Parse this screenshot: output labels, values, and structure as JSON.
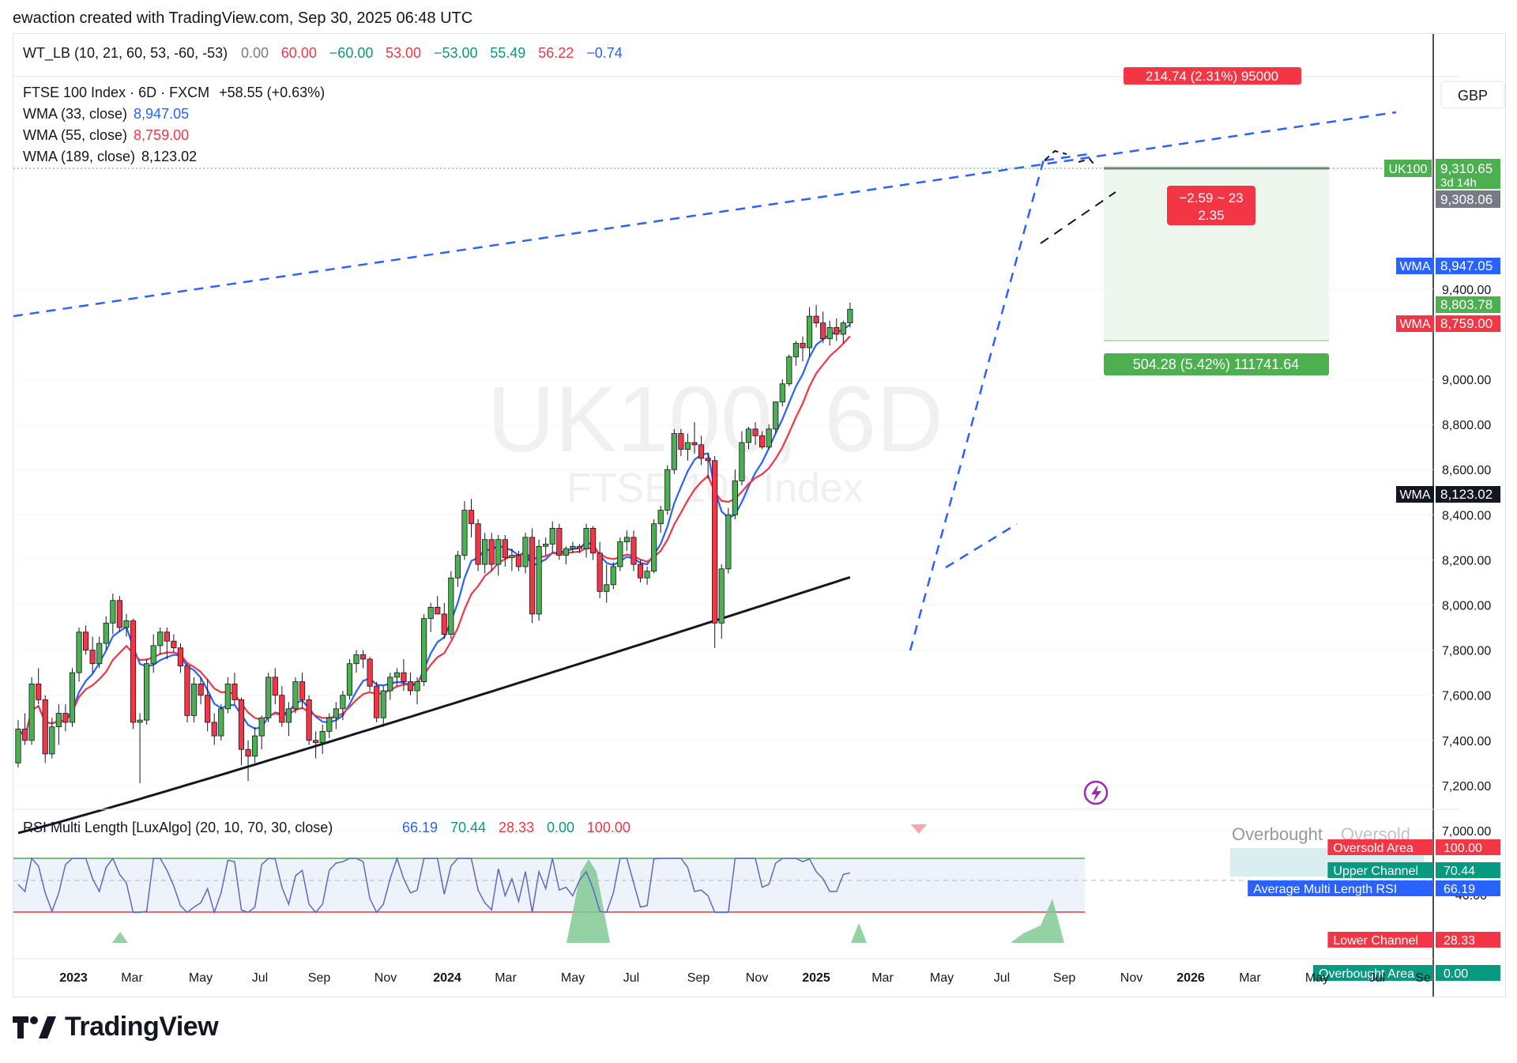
{
  "credit": "ewaction created with TradingView.com, Sep 30, 2025 06:48 UTC",
  "wt_lb": {
    "label": "WT_LB (10, 21, 60, 53, -60, -53)",
    "values": [
      {
        "text": "0.00",
        "color": "#787b86"
      },
      {
        "text": "60.00",
        "color": "#f23645"
      },
      {
        "text": "−60.00",
        "color": "#089981"
      },
      {
        "text": "53.00",
        "color": "#f23645"
      },
      {
        "text": "−53.00",
        "color": "#089981"
      },
      {
        "text": "55.49",
        "color": "#089981"
      },
      {
        "text": "56.22",
        "color": "#f23645"
      },
      {
        "text": "−0.74",
        "color": "#2962ff"
      }
    ]
  },
  "legend": {
    "symbol": "FTSE 100 Index · 6D · FXCM",
    "change": "+58.55 (+0.63%)",
    "wma33_label": "WMA (33, close)",
    "wma33_value": "8,947.05",
    "wma55_label": "WMA (55, close)",
    "wma55_value": "8,759.00",
    "wma189_label": "WMA (189, close)",
    "wma189_value": "8,123.02"
  },
  "watermark": {
    "ticker": "UK100, 6D",
    "name": "FTSE 100 Index"
  },
  "currency": "GBP",
  "price_axis": {
    "ticks": [
      "9,400.00",
      "9,000.00",
      "8,800.00",
      "8,600.00",
      "8,400.00",
      "8,200.00",
      "8,000.00",
      "7,800.00",
      "7,600.00",
      "7,400.00",
      "7,200.00",
      "7,000.00"
    ],
    "tick_values": [
      9400,
      9000,
      8800,
      8600,
      8400,
      8200,
      8000,
      7800,
      7600,
      7400,
      7200,
      7000
    ]
  },
  "badges": {
    "uk100_tag": "UK100",
    "uk100_price": "9,310.65",
    "uk100_countdown": "3d 14h",
    "grey_price": "9,308.06",
    "wma_tag": "WMA",
    "wma33": "8,947.05",
    "green_price": "8,803.78",
    "wma55": "8,759.00",
    "wma189": "8,123.02"
  },
  "measures": {
    "top_red": "214.74 (2.31%) 95000",
    "red_box_line1": "−2.59 ~ 23",
    "red_box_line2": "2.35",
    "green_box": "504.28 (5.42%) 111741.64"
  },
  "rsi": {
    "label": "RSI Multi Length [LuxAlgo] (20, 10, 70, 30, close)",
    "values": [
      {
        "text": "66.19",
        "color": "#2962ff"
      },
      {
        "text": "70.44",
        "color": "#089981"
      },
      {
        "text": "28.33",
        "color": "#f23645"
      },
      {
        "text": "0.00",
        "color": "#089981"
      },
      {
        "text": "100.00",
        "color": "#f23645"
      }
    ],
    "overbought_text": "Overbought",
    "oversold_text": "Oversold",
    "tick_40": "40.00",
    "badges": [
      {
        "label": "Oversold Area",
        "value": "100.00",
        "color": "#f23645"
      },
      {
        "label": "Upper Channel",
        "value": "70.44",
        "color": "#089981"
      },
      {
        "label": "Average Multi Length RSI",
        "value": "66.19",
        "color": "#2962ff"
      },
      {
        "label": "Lower Channel",
        "value": "28.33",
        "color": "#f23645"
      },
      {
        "label": "Overbought Area",
        "value": "0.00",
        "color": "#089981"
      }
    ]
  },
  "time_axis": [
    "2023",
    "Mar",
    "May",
    "Jul",
    "Sep",
    "Nov",
    "2024",
    "Mar",
    "May",
    "Jul",
    "Sep",
    "Nov",
    "2025",
    "Mar",
    "May",
    "Jul",
    "Sep",
    "Nov",
    "2026",
    "Mar",
    "May",
    "Jul",
    "Se"
  ],
  "brand": "TradingView",
  "chart_data": {
    "type": "candlestick",
    "title": "FTSE 100 Index · 6D · FXCM",
    "ylim": [
      7000,
      9450
    ],
    "candles": [
      [
        7300,
        7490,
        7280,
        7450
      ],
      [
        7450,
        7520,
        7380,
        7400
      ],
      [
        7400,
        7680,
        7380,
        7650
      ],
      [
        7650,
        7720,
        7560,
        7580
      ],
      [
        7580,
        7600,
        7300,
        7340
      ],
      [
        7340,
        7500,
        7320,
        7460
      ],
      [
        7460,
        7560,
        7380,
        7520
      ],
      [
        7520,
        7560,
        7440,
        7480
      ],
      [
        7480,
        7720,
        7460,
        7700
      ],
      [
        7700,
        7900,
        7660,
        7880
      ],
      [
        7880,
        7910,
        7780,
        7800
      ],
      [
        7800,
        7860,
        7700,
        7740
      ],
      [
        7740,
        7860,
        7720,
        7830
      ],
      [
        7830,
        7950,
        7800,
        7920
      ],
      [
        7920,
        8050,
        7870,
        8020
      ],
      [
        8020,
        8040,
        7880,
        7900
      ],
      [
        7900,
        7960,
        7860,
        7930
      ],
      [
        7930,
        7940,
        7450,
        7480
      ],
      [
        7480,
        7520,
        7210,
        7490
      ],
      [
        7490,
        7760,
        7470,
        7740
      ],
      [
        7740,
        7870,
        7700,
        7820
      ],
      [
        7820,
        7900,
        7780,
        7880
      ],
      [
        7880,
        7900,
        7760,
        7840
      ],
      [
        7840,
        7870,
        7790,
        7810
      ],
      [
        7810,
        7830,
        7700,
        7730
      ],
      [
        7730,
        7740,
        7480,
        7510
      ],
      [
        7510,
        7680,
        7480,
        7650
      ],
      [
        7650,
        7680,
        7560,
        7600
      ],
      [
        7600,
        7670,
        7440,
        7480
      ],
      [
        7480,
        7520,
        7380,
        7420
      ],
      [
        7420,
        7560,
        7400,
        7540
      ],
      [
        7540,
        7680,
        7520,
        7650
      ],
      [
        7650,
        7700,
        7560,
        7580
      ],
      [
        7580,
        7590,
        7290,
        7360
      ],
      [
        7360,
        7400,
        7220,
        7330
      ],
      [
        7330,
        7460,
        7300,
        7420
      ],
      [
        7420,
        7510,
        7360,
        7500
      ],
      [
        7500,
        7700,
        7480,
        7680
      ],
      [
        7680,
        7720,
        7560,
        7600
      ],
      [
        7600,
        7640,
        7460,
        7480
      ],
      [
        7480,
        7570,
        7420,
        7540
      ],
      [
        7540,
        7680,
        7520,
        7660
      ],
      [
        7660,
        7700,
        7540,
        7580
      ],
      [
        7580,
        7600,
        7380,
        7400
      ],
      [
        7400,
        7440,
        7320,
        7390
      ],
      [
        7390,
        7470,
        7340,
        7440
      ],
      [
        7440,
        7520,
        7410,
        7500
      ],
      [
        7500,
        7570,
        7450,
        7540
      ],
      [
        7540,
        7620,
        7490,
        7600
      ],
      [
        7600,
        7760,
        7580,
        7740
      ],
      [
        7740,
        7800,
        7700,
        7780
      ],
      [
        7780,
        7800,
        7720,
        7760
      ],
      [
        7760,
        7770,
        7620,
        7640
      ],
      [
        7640,
        7660,
        7480,
        7500
      ],
      [
        7500,
        7640,
        7460,
        7620
      ],
      [
        7620,
        7700,
        7580,
        7680
      ],
      [
        7680,
        7720,
        7640,
        7700
      ],
      [
        7700,
        7760,
        7620,
        7660
      ],
      [
        7660,
        7700,
        7600,
        7620
      ],
      [
        7620,
        7680,
        7560,
        7660
      ],
      [
        7660,
        7960,
        7640,
        7940
      ],
      [
        7940,
        8010,
        7880,
        7990
      ],
      [
        7990,
        8040,
        7960,
        7960
      ],
      [
        7960,
        8010,
        7850,
        7870
      ],
      [
        7870,
        8150,
        7850,
        8120
      ],
      [
        8120,
        8240,
        8080,
        8220
      ],
      [
        8220,
        8460,
        8200,
        8420
      ],
      [
        8420,
        8470,
        8300,
        8360
      ],
      [
        8360,
        8380,
        8150,
        8180
      ],
      [
        8180,
        8320,
        8140,
        8290
      ],
      [
        8290,
        8320,
        8150,
        8180
      ],
      [
        8180,
        8310,
        8130,
        8290
      ],
      [
        8290,
        8310,
        8170,
        8210
      ],
      [
        8210,
        8250,
        8150,
        8220
      ],
      [
        8220,
        8240,
        8150,
        8170
      ],
      [
        8170,
        8320,
        8140,
        8300
      ],
      [
        8300,
        8340,
        7920,
        7960
      ],
      [
        7960,
        8290,
        7930,
        8260
      ],
      [
        8260,
        8300,
        8220,
        8270
      ],
      [
        8270,
        8370,
        8230,
        8340
      ],
      [
        8340,
        8360,
        8200,
        8220
      ],
      [
        8220,
        8260,
        8180,
        8250
      ],
      [
        8250,
        8280,
        8230,
        8260
      ],
      [
        8260,
        8270,
        8230,
        8250
      ],
      [
        8250,
        8360,
        8210,
        8340
      ],
      [
        8340,
        8350,
        8200,
        8230
      ],
      [
        8230,
        8280,
        8030,
        8060
      ],
      [
        8060,
        8180,
        8010,
        8090
      ],
      [
        8090,
        8190,
        8070,
        8170
      ],
      [
        8170,
        8300,
        8150,
        8280
      ],
      [
        8280,
        8330,
        8240,
        8300
      ],
      [
        8300,
        8330,
        8150,
        8180
      ],
      [
        8180,
        8200,
        8100,
        8120
      ],
      [
        8120,
        8170,
        8090,
        8150
      ],
      [
        8150,
        8380,
        8140,
        8360
      ],
      [
        8360,
        8440,
        8320,
        8420
      ],
      [
        8420,
        8620,
        8400,
        8600
      ],
      [
        8600,
        8780,
        8580,
        8760
      ],
      [
        8760,
        8780,
        8660,
        8690
      ],
      [
        8690,
        8760,
        8640,
        8720
      ],
      [
        8720,
        8810,
        8670,
        8710
      ],
      [
        8710,
        8750,
        8620,
        8650
      ],
      [
        8650,
        8670,
        8560,
        8640
      ],
      [
        8640,
        8660,
        7810,
        7920
      ],
      [
        7920,
        8180,
        7850,
        8160
      ],
      [
        8160,
        8430,
        8140,
        8400
      ],
      [
        8400,
        8600,
        8380,
        8550
      ],
      [
        8550,
        8770,
        8530,
        8720
      ],
      [
        8720,
        8790,
        8690,
        8780
      ],
      [
        8780,
        8810,
        8710,
        8750
      ],
      [
        8750,
        8770,
        8690,
        8700
      ],
      [
        8700,
        8800,
        8690,
        8780
      ],
      [
        8780,
        8900,
        8760,
        8900
      ],
      [
        8900,
        9000,
        8880,
        8980
      ],
      [
        8980,
        9110,
        8970,
        9100
      ],
      [
        9100,
        9170,
        9060,
        9160
      ],
      [
        9160,
        9190,
        9080,
        9140
      ],
      [
        9140,
        9320,
        9100,
        9280
      ],
      [
        9280,
        9330,
        9230,
        9250
      ],
      [
        9250,
        9300,
        9160,
        9180
      ],
      [
        9180,
        9260,
        9150,
        9230
      ],
      [
        9230,
        9270,
        9170,
        9200
      ],
      [
        9200,
        9260,
        9160,
        9250
      ],
      [
        9250,
        9340,
        9230,
        9310.65
      ]
    ]
  }
}
